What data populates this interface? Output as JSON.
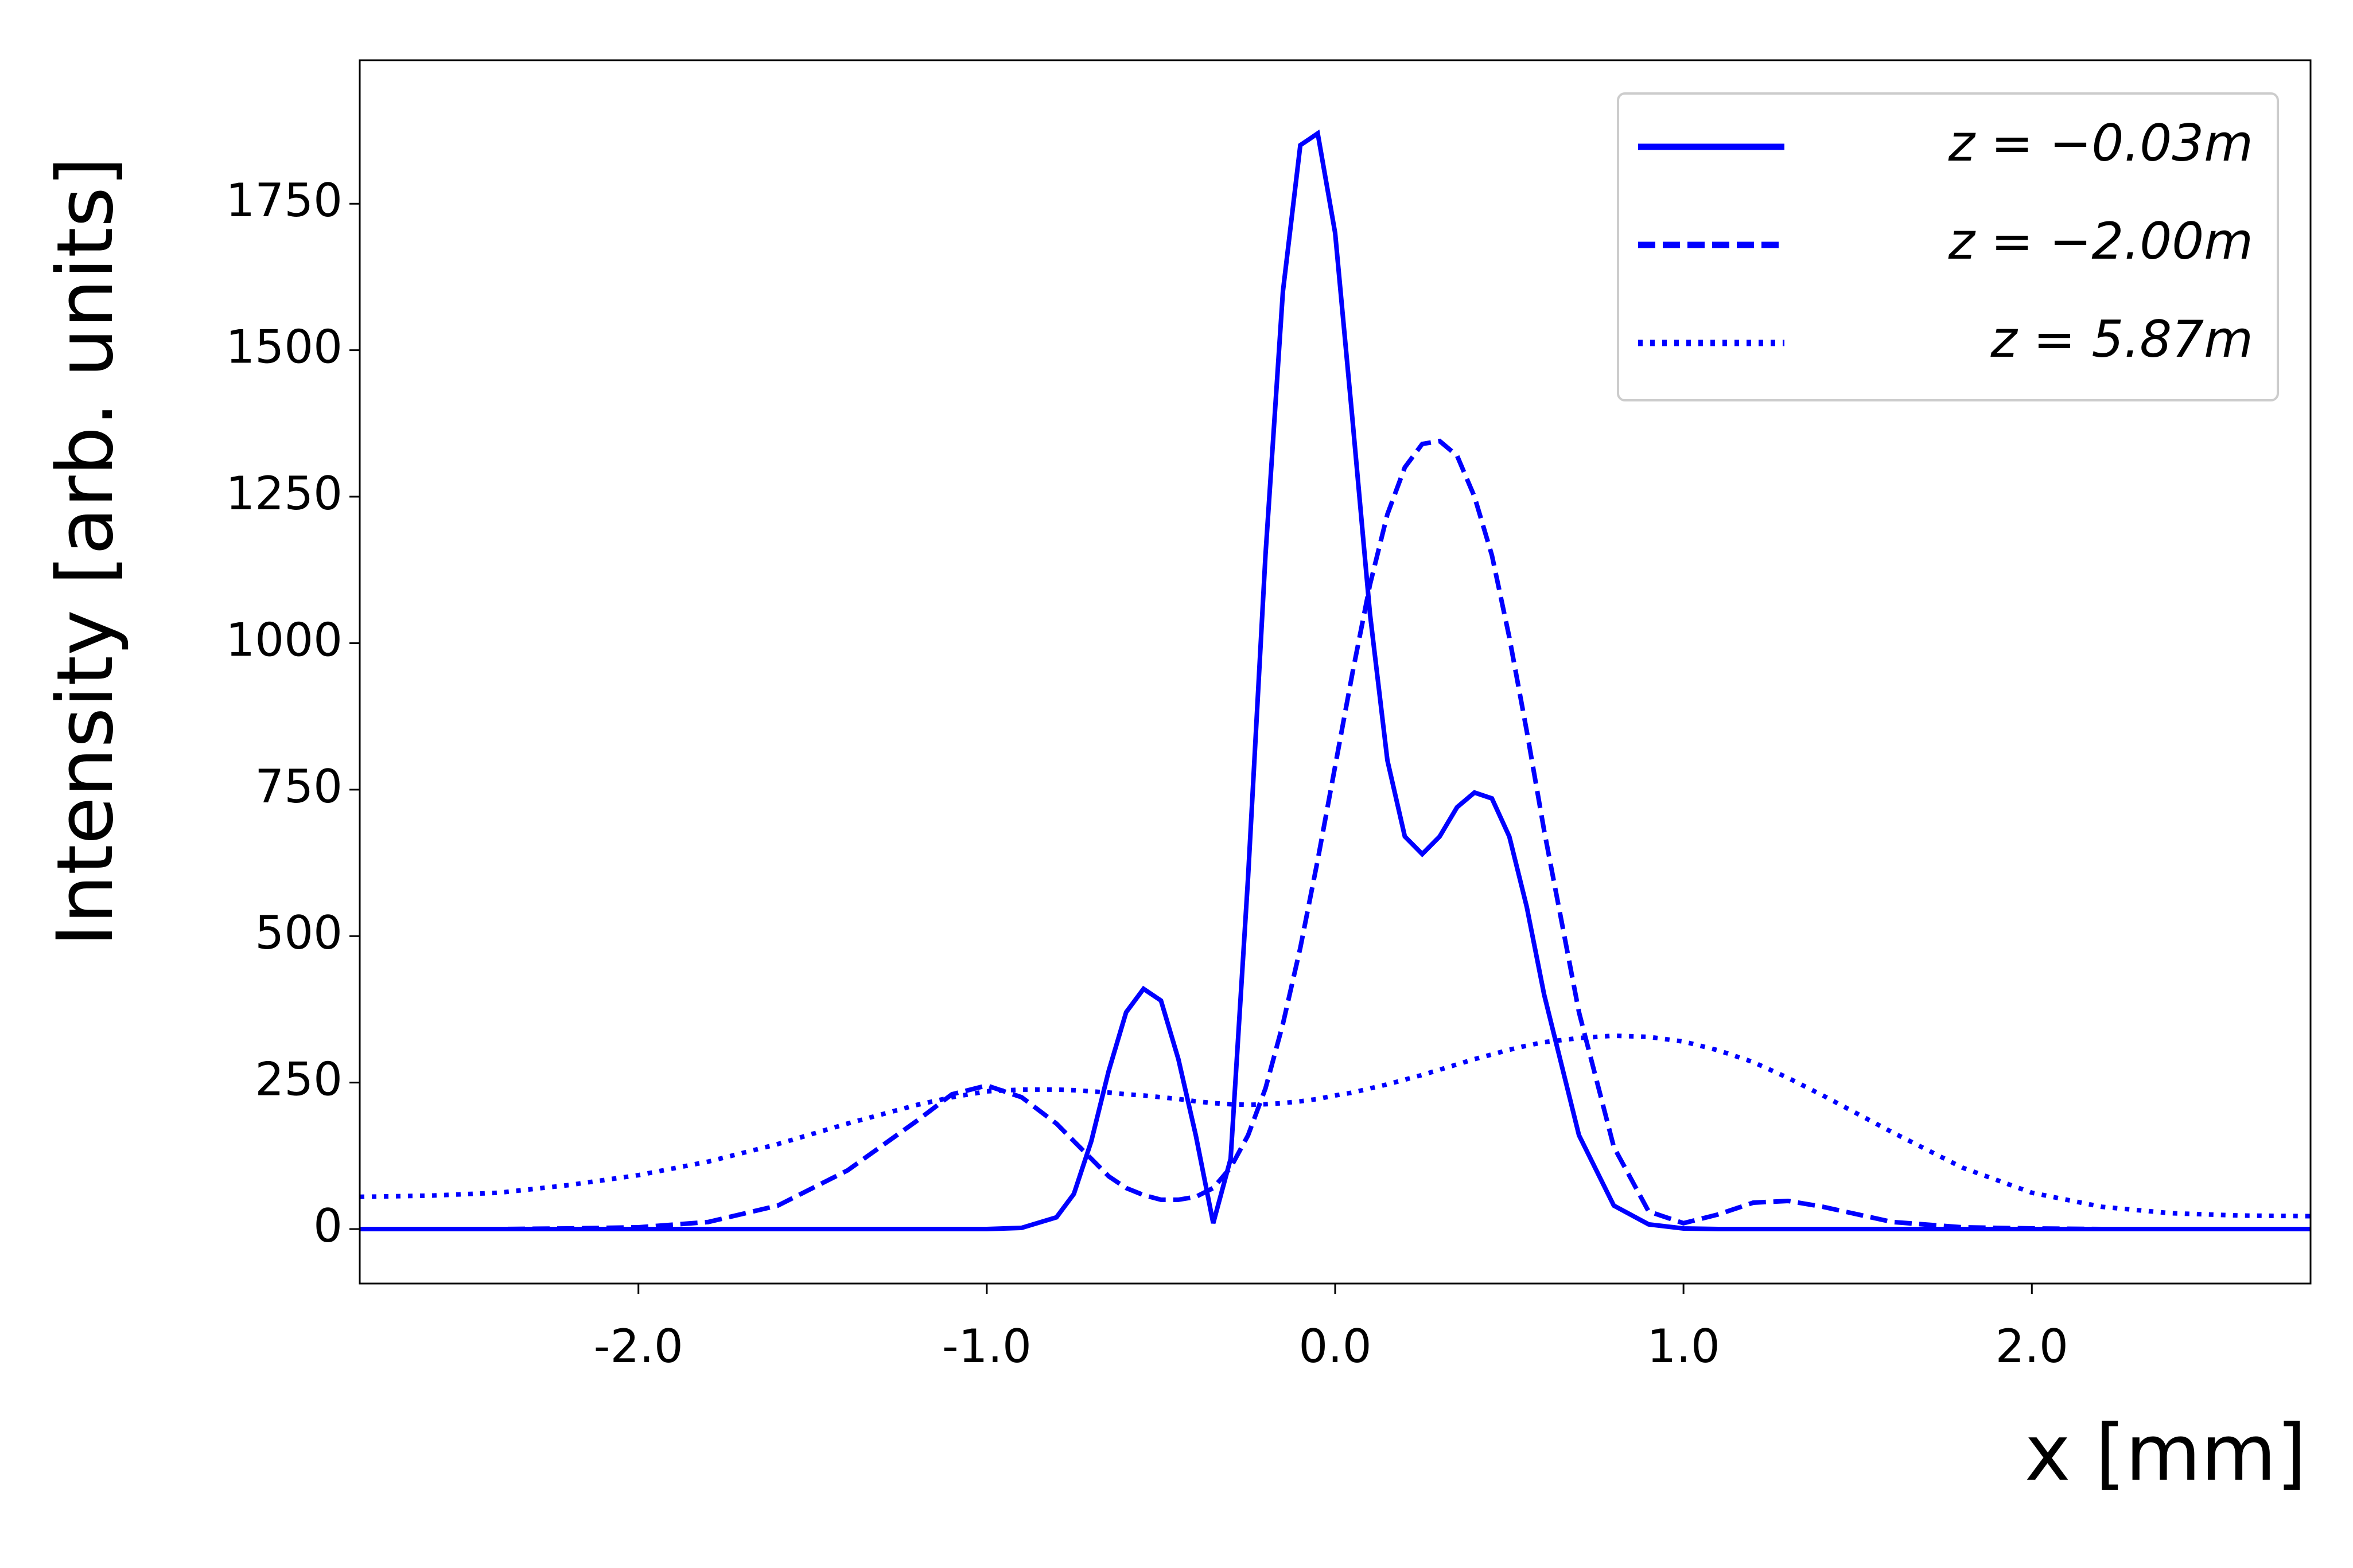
{
  "chart_data": {
    "type": "line",
    "xlabel": "x [mm]",
    "ylabel": "Intensity [arb. units]",
    "x": [
      -2.8,
      -2.6,
      -2.4,
      -2.2,
      -2.0,
      -1.8,
      -1.6,
      -1.4,
      -1.2,
      -1.1,
      -1.0,
      -0.9,
      -0.8,
      -0.75,
      -0.7,
      -0.65,
      -0.6,
      -0.55,
      -0.5,
      -0.45,
      -0.4,
      -0.35,
      -0.3,
      -0.25,
      -0.2,
      -0.15,
      -0.1,
      -0.05,
      0,
      0.05,
      0.1,
      0.15,
      0.2,
      0.25,
      0.3,
      0.35,
      0.4,
      0.45,
      0.5,
      0.55,
      0.6,
      0.7,
      0.8,
      0.9,
      1.0,
      1.1,
      1.2,
      1.3,
      1.4,
      1.6,
      1.8,
      2.0,
      2.2,
      2.4,
      2.6,
      2.8
    ],
    "series": [
      {
        "name": "z = −0.03m",
        "color": "#0000ff",
        "linestyle": "solid",
        "values": [
          0,
          0,
          0,
          0,
          0,
          0,
          0,
          0,
          0,
          0,
          0,
          2,
          20,
          60,
          150,
          270,
          370,
          410,
          390,
          290,
          160,
          10,
          120,
          600,
          1150,
          1600,
          1850,
          1870,
          1700,
          1380,
          1050,
          800,
          670,
          640,
          670,
          720,
          745,
          735,
          670,
          550,
          400,
          160,
          40,
          8,
          1,
          0,
          0,
          0,
          0,
          0,
          0,
          0,
          0,
          0,
          0,
          0
        ]
      },
      {
        "name": "z = −2.00m",
        "color": "#0000ff",
        "linestyle": "dashed",
        "values": [
          0,
          0,
          0,
          1,
          3,
          12,
          40,
          100,
          185,
          230,
          245,
          225,
          180,
          150,
          120,
          90,
          70,
          58,
          50,
          50,
          55,
          70,
          105,
          160,
          240,
          350,
          480,
          630,
          790,
          950,
          1100,
          1220,
          1300,
          1340,
          1345,
          1320,
          1250,
          1150,
          1010,
          850,
          680,
          370,
          140,
          30,
          10,
          25,
          45,
          48,
          38,
          12,
          3,
          1,
          0,
          0,
          0,
          0
        ]
      },
      {
        "name": "z = 5.87m",
        "color": "#0000ff",
        "linestyle": "dotted",
        "values": [
          55,
          57,
          62,
          75,
          92,
          115,
          145,
          180,
          212,
          225,
          235,
          238,
          238,
          237,
          235,
          233,
          230,
          228,
          225,
          222,
          218,
          215,
          213,
          212,
          213,
          215,
          218,
          222,
          228,
          233,
          240,
          247,
          255,
          263,
          272,
          281,
          290,
          298,
          306,
          313,
          319,
          326,
          330,
          328,
          320,
          305,
          285,
          258,
          228,
          165,
          105,
          62,
          38,
          27,
          23,
          22
        ]
      }
    ],
    "xlim": [
      -2.8,
      2.8
    ],
    "xticks": [
      {
        "value": -2,
        "label": "-2.0"
      },
      {
        "value": -1,
        "label": "-1.0"
      },
      {
        "value": 0,
        "label": "0.0"
      },
      {
        "value": 1,
        "label": "1.0"
      },
      {
        "value": 2,
        "label": "2.0"
      }
    ],
    "ylim": [
      -93,
      1995
    ],
    "yticks": [
      0,
      250,
      500,
      750,
      1000,
      1250,
      1500,
      1750
    ],
    "grid": false,
    "legend": "upper right"
  }
}
